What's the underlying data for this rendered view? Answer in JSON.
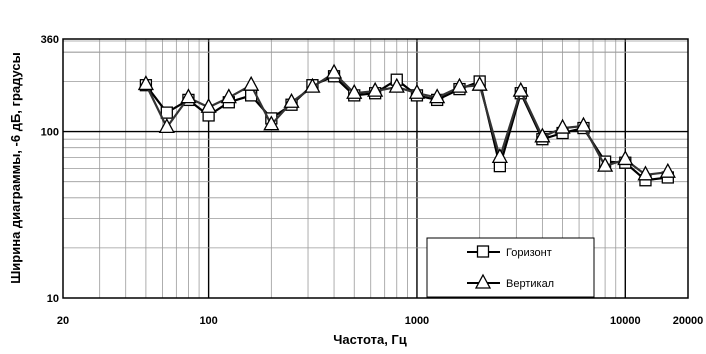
{
  "chart_data": {
    "type": "line",
    "xlabel": "Частота, Гц",
    "ylabel": "Ширина диаграммы, -6 дБ, градусы",
    "xscale": "log",
    "yscale": "log",
    "xlim": [
      20,
      20000
    ],
    "ylim": [
      10,
      360
    ],
    "x_ticks": [
      {
        "value": 20,
        "label": "20"
      },
      {
        "value": 100,
        "label": "100"
      },
      {
        "value": 1000,
        "label": "1000"
      },
      {
        "value": 10000,
        "label": "10000"
      },
      {
        "value": 20000,
        "label": "20000"
      }
    ],
    "y_ticks": [
      {
        "value": 10,
        "label": "10"
      },
      {
        "value": 100,
        "label": "100"
      },
      {
        "value": 360,
        "label": "360"
      }
    ],
    "grid": true,
    "legend_position": "bottom-right",
    "x": [
      50,
      63,
      80,
      100,
      125,
      160,
      200,
      250,
      315,
      400,
      500,
      630,
      800,
      1000,
      1250,
      1600,
      2000,
      2500,
      3150,
      4000,
      5000,
      6300,
      8000,
      10000,
      12500,
      16000
    ],
    "series": [
      {
        "name": "Горизонт",
        "marker": "square",
        "values": [
          190,
          130,
          155,
          125,
          150,
          165,
          120,
          145,
          190,
          215,
          165,
          170,
          205,
          165,
          155,
          180,
          200,
          62,
          170,
          90,
          98,
          105,
          66,
          65,
          51,
          53
        ]
      },
      {
        "name": "Вертикал",
        "marker": "triangle",
        "values": [
          192,
          106,
          160,
          140,
          160,
          190,
          110,
          150,
          185,
          225,
          170,
          175,
          185,
          170,
          160,
          185,
          190,
          70,
          175,
          93,
          105,
          108,
          62,
          68,
          55,
          57
        ]
      }
    ]
  }
}
